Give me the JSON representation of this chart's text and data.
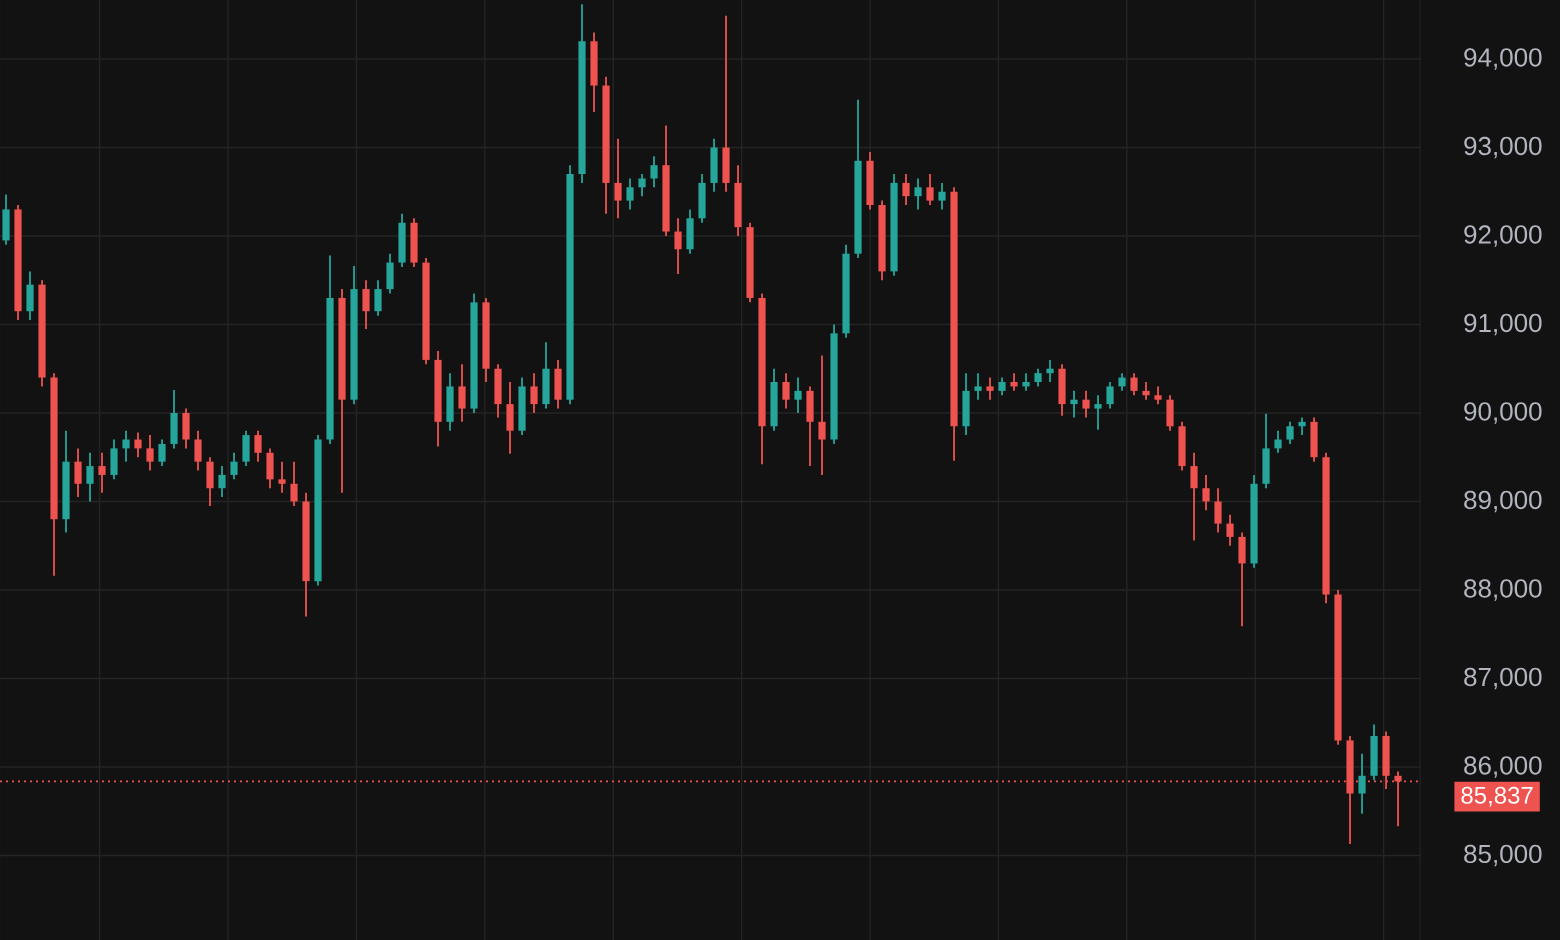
{
  "chart_data": {
    "type": "candlestick",
    "categories": [
      null,
      null,
      null,
      null,
      null,
      null,
      null,
      null,
      null,
      null,
      null,
      null,
      null,
      null,
      null,
      null,
      null,
      null,
      null,
      null,
      null,
      null,
      null,
      null,
      null,
      null,
      null,
      null,
      null,
      null,
      null,
      null,
      null,
      null,
      null,
      null,
      null,
      null,
      null,
      null,
      null,
      null,
      null,
      null,
      null,
      null,
      null,
      null,
      null,
      null,
      null,
      null,
      null,
      null,
      null,
      null,
      null,
      null,
      null,
      null,
      null,
      null,
      null,
      null,
      null,
      null,
      null,
      null,
      null,
      null,
      null,
      null,
      null,
      null,
      null,
      null,
      null,
      null,
      null,
      null,
      null,
      null,
      null,
      null,
      null,
      null,
      null,
      null,
      null,
      null,
      null,
      null,
      null,
      null,
      null,
      null,
      null,
      null,
      null,
      null,
      null,
      null,
      null,
      null,
      null,
      null,
      null,
      null,
      null,
      null,
      null,
      null,
      null,
      null,
      null,
      null,
      null
    ],
    "ohlc": [
      [
        91950,
        92470,
        91900,
        92300
      ],
      [
        92300,
        92350,
        91050,
        91150
      ],
      [
        91150,
        91600,
        91050,
        91450
      ],
      [
        91450,
        91500,
        90300,
        90400
      ],
      [
        90400,
        90450,
        88160,
        88800
      ],
      [
        88800,
        89800,
        88650,
        89450
      ],
      [
        89450,
        89600,
        89050,
        89200
      ],
      [
        89200,
        89550,
        89000,
        89400
      ],
      [
        89400,
        89550,
        89100,
        89300
      ],
      [
        89300,
        89700,
        89250,
        89600
      ],
      [
        89600,
        89800,
        89450,
        89700
      ],
      [
        89700,
        89780,
        89500,
        89600
      ],
      [
        89600,
        89750,
        89350,
        89450
      ],
      [
        89450,
        89700,
        89400,
        89650
      ],
      [
        89650,
        90260,
        89600,
        90000
      ],
      [
        90000,
        90050,
        89600,
        89700
      ],
      [
        89700,
        89800,
        89350,
        89450
      ],
      [
        89450,
        89500,
        88950,
        89150
      ],
      [
        89150,
        89400,
        89050,
        89300
      ],
      [
        89300,
        89550,
        89250,
        89450
      ],
      [
        89450,
        89800,
        89400,
        89750
      ],
      [
        89750,
        89800,
        89450,
        89550
      ],
      [
        89550,
        89600,
        89150,
        89250
      ],
      [
        89250,
        89450,
        89100,
        89200
      ],
      [
        89200,
        89450,
        88950,
        89000
      ],
      [
        89000,
        89100,
        87700,
        88100
      ],
      [
        88100,
        89750,
        88050,
        89700
      ],
      [
        89700,
        91780,
        89650,
        91300
      ],
      [
        91300,
        91400,
        89100,
        90150
      ],
      [
        90150,
        91660,
        90100,
        91400
      ],
      [
        91400,
        91500,
        90950,
        91150
      ],
      [
        91150,
        91500,
        91100,
        91400
      ],
      [
        91400,
        91800,
        91350,
        91700
      ],
      [
        91700,
        92250,
        91650,
        92150
      ],
      [
        92150,
        92200,
        91650,
        91700
      ],
      [
        91700,
        91750,
        90550,
        90600
      ],
      [
        90600,
        90700,
        89620,
        89900
      ],
      [
        89900,
        90450,
        89800,
        90300
      ],
      [
        90300,
        90550,
        89900,
        90050
      ],
      [
        90050,
        91350,
        90000,
        91250
      ],
      [
        91250,
        91300,
        90350,
        90500
      ],
      [
        90500,
        90550,
        89950,
        90100
      ],
      [
        90100,
        90350,
        89540,
        89800
      ],
      [
        89800,
        90400,
        89750,
        90300
      ],
      [
        90300,
        90450,
        90000,
        90100
      ],
      [
        90100,
        90800,
        90050,
        90500
      ],
      [
        90500,
        90600,
        90050,
        90150
      ],
      [
        90150,
        92800,
        90100,
        92700
      ],
      [
        92700,
        94620,
        92600,
        94200
      ],
      [
        94200,
        94300,
        93400,
        93700
      ],
      [
        93700,
        93800,
        92250,
        92600
      ],
      [
        92600,
        93100,
        92200,
        92400
      ],
      [
        92400,
        92650,
        92300,
        92550
      ],
      [
        92550,
        92700,
        92450,
        92650
      ],
      [
        92650,
        92900,
        92550,
        92800
      ],
      [
        92800,
        93250,
        92000,
        92050
      ],
      [
        92050,
        92200,
        91570,
        91850
      ],
      [
        91850,
        92300,
        91800,
        92200
      ],
      [
        92200,
        92700,
        92150,
        92600
      ],
      [
        92600,
        93100,
        92500,
        93000
      ],
      [
        93000,
        94490,
        92500,
        92600
      ],
      [
        92600,
        92800,
        92000,
        92100
      ],
      [
        92100,
        92150,
        91250,
        91300
      ],
      [
        91300,
        91350,
        89420,
        89850
      ],
      [
        89850,
        90500,
        89800,
        90350
      ],
      [
        90350,
        90450,
        90050,
        90150
      ],
      [
        90150,
        90400,
        90000,
        90250
      ],
      [
        90250,
        90300,
        89400,
        89900
      ],
      [
        89900,
        90650,
        89300,
        89700
      ],
      [
        89700,
        91000,
        89650,
        90900
      ],
      [
        90900,
        91900,
        90850,
        91800
      ],
      [
        91800,
        93540,
        91750,
        92850
      ],
      [
        92850,
        92950,
        92300,
        92350
      ],
      [
        92350,
        92400,
        91500,
        91600
      ],
      [
        91600,
        92700,
        91550,
        92600
      ],
      [
        92600,
        92700,
        92350,
        92450
      ],
      [
        92450,
        92650,
        92300,
        92550
      ],
      [
        92550,
        92700,
        92350,
        92400
      ],
      [
        92400,
        92600,
        92300,
        92500
      ],
      [
        92500,
        92550,
        89460,
        89850
      ],
      [
        89850,
        90450,
        89750,
        90250
      ],
      [
        90250,
        90450,
        90150,
        90300
      ],
      [
        90300,
        90400,
        90150,
        90250
      ],
      [
        90250,
        90400,
        90200,
        90350
      ],
      [
        90350,
        90450,
        90250,
        90300
      ],
      [
        90300,
        90450,
        90250,
        90350
      ],
      [
        90350,
        90500,
        90300,
        90450
      ],
      [
        90450,
        90600,
        90350,
        90500
      ],
      [
        90500,
        90550,
        89970,
        90100
      ],
      [
        90100,
        90250,
        89950,
        90150
      ],
      [
        90150,
        90250,
        89950,
        90050
      ],
      [
        90050,
        90200,
        89810,
        90100
      ],
      [
        90100,
        90350,
        90050,
        90300
      ],
      [
        90300,
        90450,
        90250,
        90400
      ],
      [
        90400,
        90450,
        90200,
        90250
      ],
      [
        90250,
        90350,
        90150,
        90200
      ],
      [
        90200,
        90300,
        90100,
        90150
      ],
      [
        90150,
        90200,
        89800,
        89850
      ],
      [
        89850,
        89900,
        89350,
        89400
      ],
      [
        89400,
        89550,
        88560,
        89150
      ],
      [
        89150,
        89300,
        88900,
        89000
      ],
      [
        89000,
        89150,
        88650,
        88750
      ],
      [
        88750,
        88850,
        88500,
        88600
      ],
      [
        88600,
        88650,
        87590,
        88300
      ],
      [
        88300,
        89300,
        88250,
        89200
      ],
      [
        89200,
        89990,
        89150,
        89600
      ],
      [
        89600,
        89800,
        89550,
        89700
      ],
      [
        89700,
        89900,
        89650,
        89850
      ],
      [
        89850,
        89950,
        89750,
        89900
      ],
      [
        89900,
        89950,
        89450,
        89500
      ],
      [
        89500,
        89550,
        87850,
        87950
      ],
      [
        87950,
        88000,
        86250,
        86300
      ],
      [
        86300,
        86350,
        85130,
        85700
      ],
      [
        85700,
        86150,
        85470,
        85900
      ],
      [
        85900,
        86480,
        85850,
        86350
      ],
      [
        86350,
        86400,
        85750,
        85900
      ],
      [
        85900,
        85950,
        85330,
        85837
      ]
    ],
    "colors": [
      "#26a69a",
      "#ef5350",
      "#26a69a",
      "#ef5350",
      "#ef5350",
      "#26a69a",
      "#ef5350",
      "#26a69a",
      "#ef5350",
      "#26a69a",
      "#26a69a",
      "#ef5350",
      "#ef5350",
      "#26a69a",
      "#26a69a",
      "#ef5350",
      "#ef5350",
      "#ef5350",
      "#26a69a",
      "#26a69a",
      "#26a69a",
      "#ef5350",
      "#ef5350",
      "#ef5350",
      "#ef5350",
      "#ef5350",
      "#26a69a",
      "#26a69a",
      "#ef5350",
      "#26a69a",
      "#ef5350",
      "#26a69a",
      "#26a69a",
      "#26a69a",
      "#ef5350",
      "#ef5350",
      "#ef5350",
      "#26a69a",
      "#ef5350",
      "#26a69a",
      "#ef5350",
      "#ef5350",
      "#ef5350",
      "#26a69a",
      "#ef5350",
      "#26a69a",
      "#ef5350",
      "#26a69a",
      "#26a69a",
      "#ef5350",
      "#ef5350",
      "#ef5350",
      "#26a69a",
      "#26a69a",
      "#26a69a",
      "#ef5350",
      "#ef5350",
      "#26a69a",
      "#26a69a",
      "#26a69a",
      "#ef5350",
      "#ef5350",
      "#ef5350",
      "#ef5350",
      "#26a69a",
      "#ef5350",
      "#26a69a",
      "#ef5350",
      "#ef5350",
      "#26a69a",
      "#26a69a",
      "#26a69a",
      "#ef5350",
      "#ef5350",
      "#26a69a",
      "#ef5350",
      "#26a69a",
      "#ef5350",
      "#26a69a",
      "#ef5350",
      "#26a69a",
      "#26a69a",
      "#ef5350",
      "#26a69a",
      "#ef5350",
      "#26a69a",
      "#26a69a",
      "#26a69a",
      "#ef5350",
      "#26a69a",
      "#ef5350",
      "#26a69a",
      "#26a69a",
      "#26a69a",
      "#ef5350",
      "#ef5350",
      "#ef5350",
      "#ef5350",
      "#ef5350",
      "#ef5350",
      "#ef5350",
      "#ef5350",
      "#ef5350",
      "#ef5350",
      "#26a69a",
      "#26a69a",
      "#26a69a",
      "#26a69a",
      "#26a69a",
      "#ef5350",
      "#ef5350",
      "#ef5350",
      "#ef5350",
      "#26a69a",
      "#26a69a",
      "#ef5350",
      "#ef5350"
    ],
    "ylim": [
      84045,
      94667
    ],
    "yticks": [
      {
        "value": 85000,
        "label": "85,000"
      },
      {
        "value": 86000,
        "label": "86,000"
      },
      {
        "value": 87000,
        "label": "87,000"
      },
      {
        "value": 88000,
        "label": "88,000"
      },
      {
        "value": 89000,
        "label": "89,000"
      },
      {
        "value": 90000,
        "label": "90,000"
      },
      {
        "value": 91000,
        "label": "91,000"
      },
      {
        "value": 92000,
        "label": "92,000"
      },
      {
        "value": 93000,
        "label": "93,000"
      },
      {
        "value": 94000,
        "label": "94,000"
      }
    ],
    "tick_labels": "y",
    "grid": true,
    "ref_lines": [
      {
        "axis": "y",
        "value": 85837,
        "label": "85,837",
        "color": "#ef5350",
        "line_style": "dotted"
      }
    ]
  }
}
